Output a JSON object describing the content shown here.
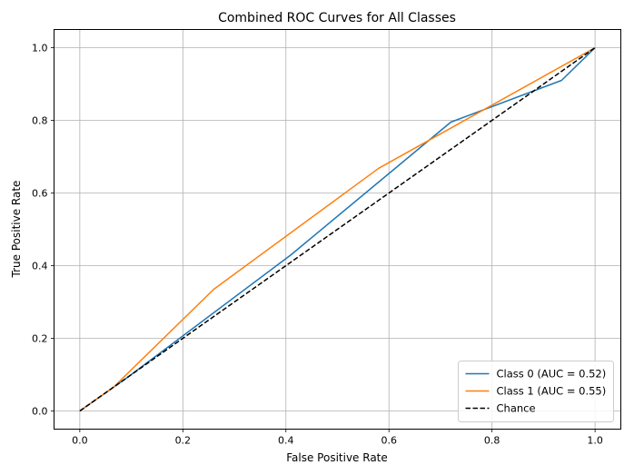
{
  "chart_data": {
    "type": "line",
    "title": "Combined ROC Curves for All Classes",
    "xlabel": "False Positive Rate",
    "ylabel": "True Positive Rate",
    "xlim": [
      -0.05,
      1.05
    ],
    "ylim": [
      -0.05,
      1.05
    ],
    "xticks": [
      0.0,
      0.2,
      0.4,
      0.6,
      0.8,
      1.0
    ],
    "yticks": [
      0.0,
      0.2,
      0.4,
      0.6,
      0.8,
      1.0
    ],
    "xtick_labels": [
      "0.0",
      "0.2",
      "0.4",
      "0.6",
      "0.8",
      "1.0"
    ],
    "ytick_labels": [
      "0.0",
      "0.2",
      "0.4",
      "0.6",
      "0.8",
      "1.0"
    ],
    "grid": true,
    "legend_position": "lower-right",
    "series": [
      {
        "name": "Class 0 (AUC = 0.52)",
        "color": "#1f77b4",
        "dash": "solid",
        "x": [
          0.0,
          0.095,
          0.41,
          0.72,
          0.935,
          1.0
        ],
        "y": [
          0.0,
          0.095,
          0.43,
          0.795,
          0.91,
          1.0
        ]
      },
      {
        "name": "Class 1 (AUC = 0.55)",
        "color": "#ff7f0e",
        "dash": "solid",
        "x": [
          0.0,
          0.065,
          0.26,
          0.58,
          1.0
        ],
        "y": [
          0.0,
          0.065,
          0.335,
          0.668,
          1.0
        ]
      },
      {
        "name": "Chance",
        "color": "#000000",
        "dash": "dashed",
        "x": [
          0.0,
          1.0
        ],
        "y": [
          0.0,
          1.0
        ]
      }
    ]
  }
}
